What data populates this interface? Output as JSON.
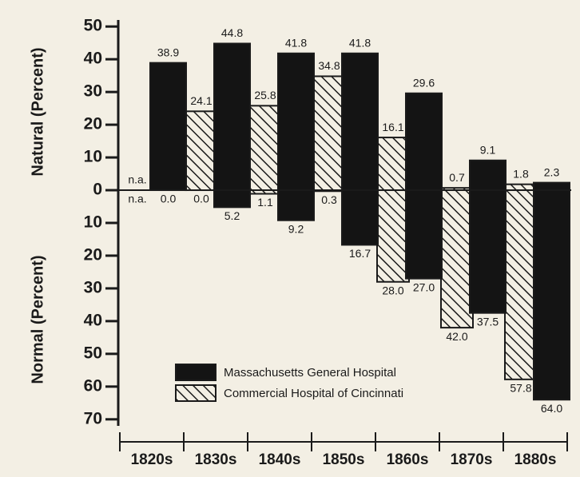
{
  "chart_data": {
    "type": "diverging_bar",
    "y_label_top": "Natural (Percent)",
    "y_label_bottom": "Normal (Percent)",
    "categories": [
      "1820s",
      "1830s",
      "1840s",
      "1850s",
      "1860s",
      "1870s",
      "1880s"
    ],
    "natural_ylim": [
      0,
      52
    ],
    "natural_yticks": [
      0,
      10,
      20,
      30,
      40,
      50
    ],
    "normal_ylim": [
      0,
      72
    ],
    "normal_yticks": [
      10,
      20,
      30,
      40,
      50,
      60,
      70
    ],
    "series": [
      {
        "name": "Commercial Hospital of Cincinnati",
        "color": "#1a1a1a",
        "pattern": "hatch",
        "natural": [
          null,
          24.1,
          25.8,
          34.8,
          16.1,
          0.7,
          1.8
        ],
        "natural_labels": [
          "n.a.",
          "24.1",
          "25.8",
          "34.8",
          "16.1",
          "0.7",
          "1.8"
        ],
        "normal": [
          null,
          0.0,
          1.1,
          0.3,
          28.0,
          42.0,
          57.8
        ],
        "normal_labels": [
          "n.a.",
          "0.0",
          "1.1",
          "0.3",
          "28.0",
          "42.0",
          "57.8"
        ]
      },
      {
        "name": "Massachusetts General Hospital",
        "color": "#141414",
        "pattern": "solid",
        "natural": [
          38.9,
          44.8,
          41.8,
          41.8,
          29.6,
          9.1,
          2.3
        ],
        "natural_labels": [
          "38.9",
          "44.8",
          "41.8",
          "41.8",
          "29.6",
          "9.1",
          "2.3"
        ],
        "normal": [
          0.0,
          5.2,
          9.2,
          16.7,
          27.0,
          37.5,
          64.0
        ],
        "normal_labels": [
          "0.0",
          "5.2",
          "9.2",
          "16.7",
          "27.0",
          "37.5",
          "64.0"
        ]
      }
    ],
    "legend_order": [
      1,
      0
    ]
  }
}
